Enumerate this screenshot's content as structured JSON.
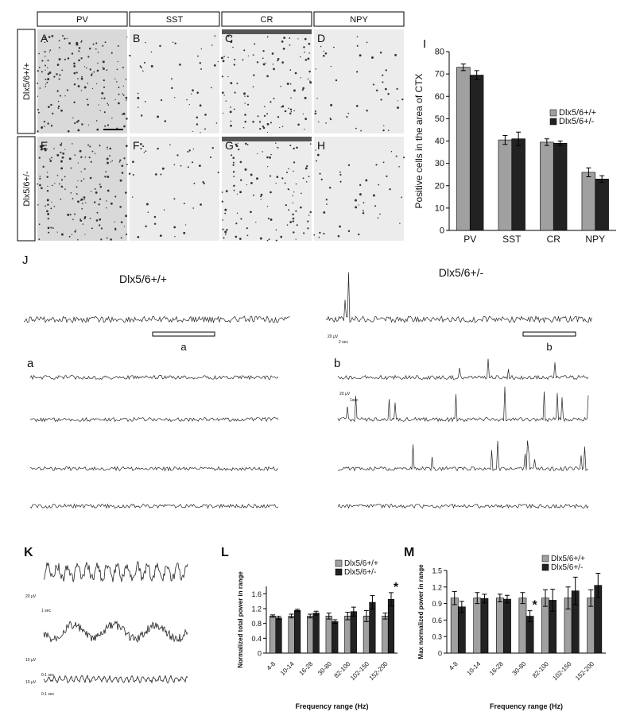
{
  "panels": {
    "headers": [
      "PV",
      "SST",
      "CR",
      "NPY"
    ],
    "image_labels": [
      "A",
      "B",
      "C",
      "D",
      "E",
      "F",
      "G",
      "H"
    ],
    "row_labels": [
      "Dlx5/6+/+",
      "Dlx5/6+/-"
    ]
  },
  "traces": {
    "panel_label": "J",
    "titles": [
      "Dlx5/6+/+",
      "Dlx5/6+/-"
    ],
    "window_labels": [
      "a",
      "b"
    ],
    "sub_labels": [
      "a",
      "b"
    ],
    "scale_labels": [
      "20 µV",
      "2 sec",
      "20 µV",
      "1sec"
    ]
  },
  "oscillations": {
    "panel_label": "K",
    "scale_labels": [
      "20 µV",
      "1 sec",
      "10 µV",
      "0.1 sec",
      "10 µV",
      "0.1 sec"
    ]
  },
  "chart_data": [
    {
      "type": "bar",
      "panel_label": "I",
      "ylabel": "Positive cells in the area of CTX",
      "categories": [
        "PV",
        "SST",
        "CR",
        "NPY"
      ],
      "series": [
        {
          "name": "Dlx5/6+/+",
          "color": "#a0a0a0",
          "values": [
            73,
            40.5,
            39.5,
            26
          ],
          "errors": [
            1.5,
            2,
            1.5,
            2
          ]
        },
        {
          "name": "Dlx5/6+/-",
          "color": "#222222",
          "values": [
            69.5,
            41,
            39,
            23
          ],
          "errors": [
            2,
            3,
            1,
            1.5
          ]
        }
      ],
      "ylim": [
        0,
        80
      ],
      "yticks": [
        0,
        10,
        20,
        30,
        40,
        50,
        60,
        70,
        80
      ]
    },
    {
      "type": "bar",
      "panel_label": "L",
      "ylabel": "Normalized total power in range",
      "xlabel": "Frequency range (Hz)",
      "categories": [
        "4-8",
        "10-14",
        "16-28",
        "30-80",
        "82-100",
        "102-150",
        "152-200"
      ],
      "series": [
        {
          "name": "Dlx5/6+/+",
          "color": "#a0a0a0",
          "values": [
            1,
            1,
            1,
            1,
            1,
            1,
            1
          ],
          "errors": [
            0.03,
            0.05,
            0.05,
            0.08,
            0.1,
            0.15,
            0.08
          ]
        },
        {
          "name": "Dlx5/6+/-",
          "color": "#222222",
          "values": [
            0.95,
            1.15,
            1.08,
            0.85,
            1.12,
            1.37,
            1.45
          ],
          "errors": [
            0.04,
            0.03,
            0.05,
            0.05,
            0.12,
            0.18,
            0.18
          ],
          "markers": [
            null,
            null,
            null,
            null,
            null,
            null,
            "*"
          ]
        }
      ],
      "ylim": [
        0,
        1.8
      ],
      "yticks": [
        0,
        0.4,
        0.8,
        1.2,
        1.6
      ]
    },
    {
      "type": "bar",
      "panel_label": "M",
      "ylabel": "Max normalized power in range",
      "xlabel": "Frequency range (Hz)",
      "categories": [
        "4-8",
        "10-14",
        "16-28",
        "30-80",
        "82-100",
        "102-150",
        "152-200"
      ],
      "series": [
        {
          "name": "Dlx5/6+/+",
          "color": "#a0a0a0",
          "values": [
            1,
            1,
            1,
            1,
            1,
            1,
            1
          ],
          "errors": [
            0.12,
            0.1,
            0.07,
            0.1,
            0.15,
            0.2,
            0.15
          ]
        },
        {
          "name": "Dlx5/6+/-",
          "color": "#222222",
          "values": [
            0.84,
            0.99,
            0.98,
            0.67,
            0.96,
            1.13,
            1.23
          ],
          "errors": [
            0.1,
            0.08,
            0.07,
            0.1,
            0.2,
            0.25,
            0.22
          ],
          "markers": [
            null,
            null,
            null,
            "*",
            null,
            null,
            null
          ]
        }
      ],
      "ylim": [
        0,
        1.5
      ],
      "yticks": [
        0,
        0.3,
        0.6,
        0.9,
        1.2,
        1.5
      ]
    }
  ]
}
